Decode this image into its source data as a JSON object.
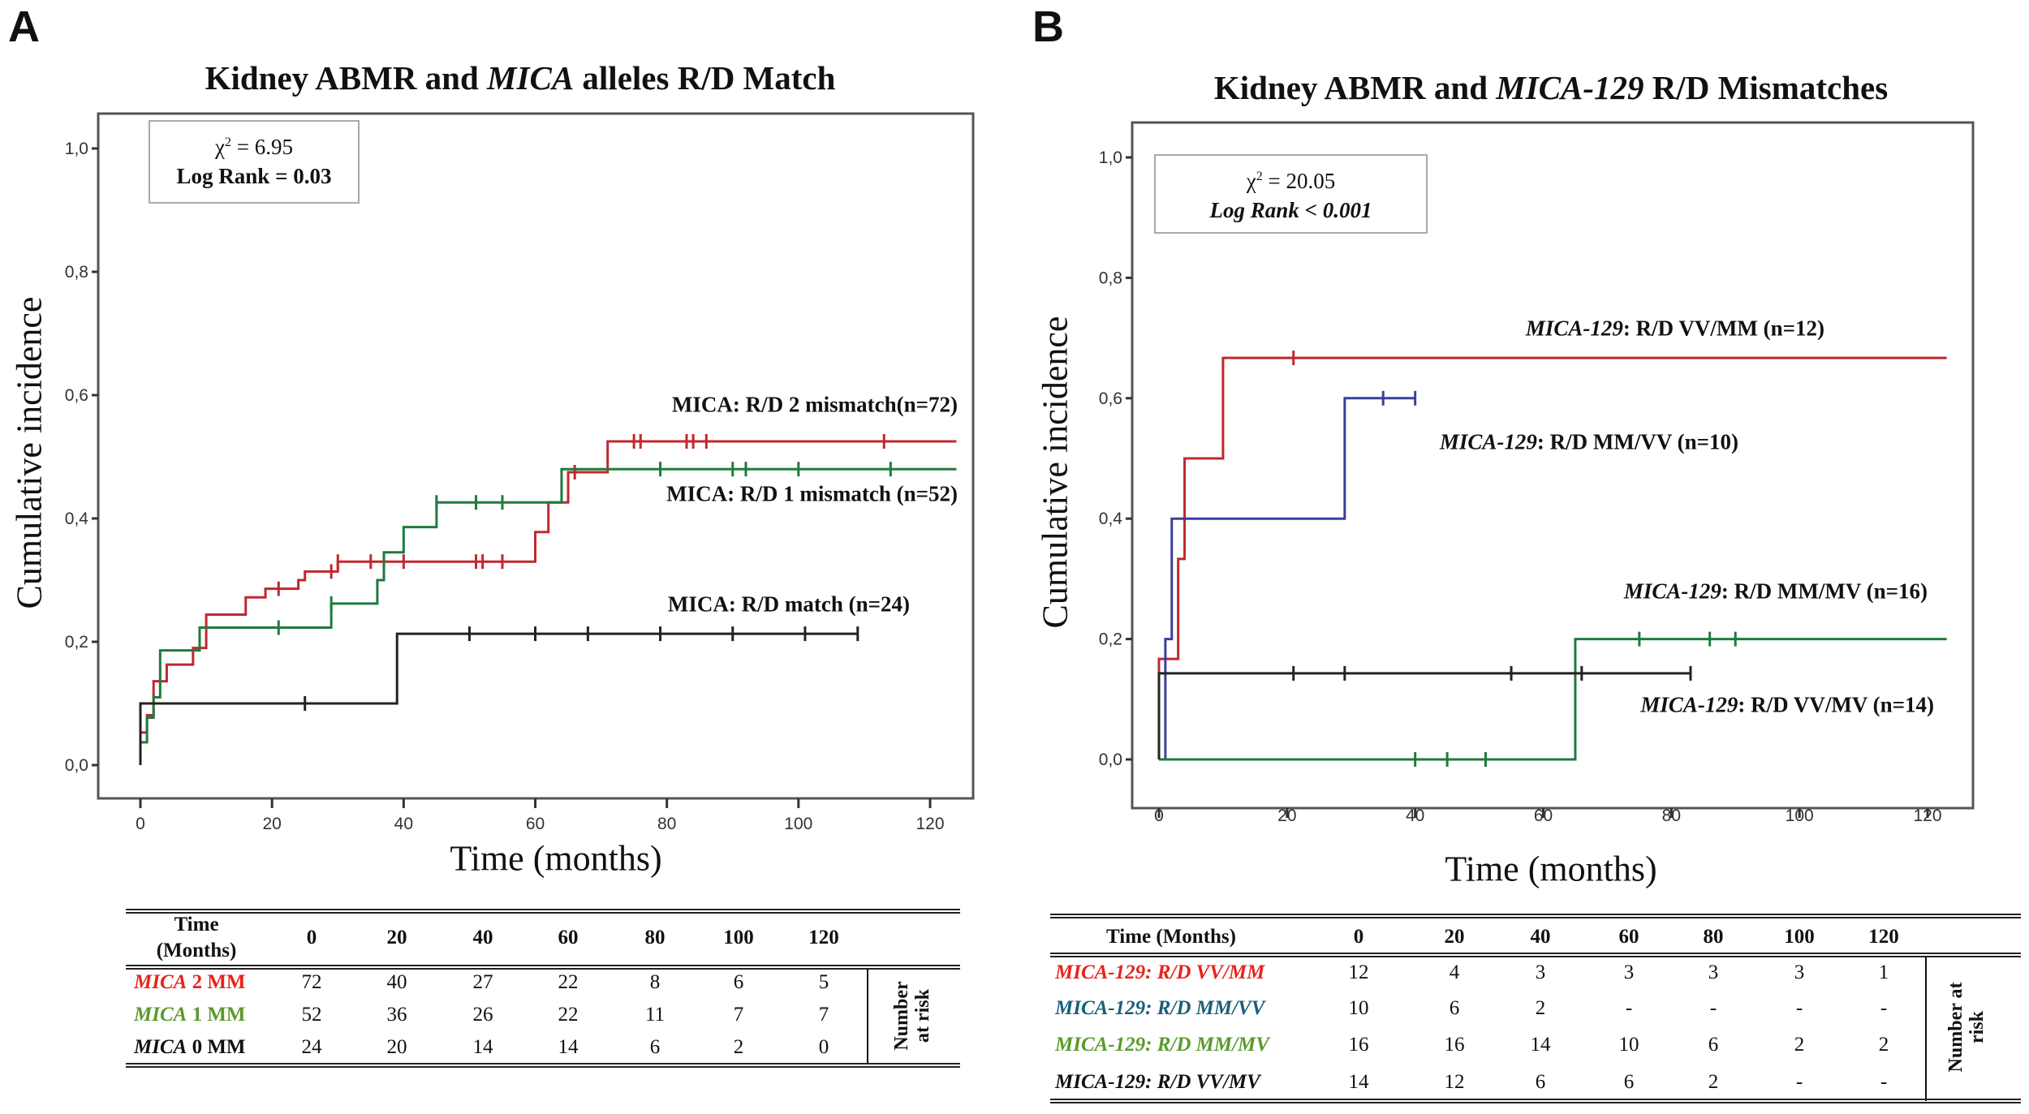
{
  "panels": {
    "A": {
      "letter": "A",
      "title": {
        "pre": "Kidney ABMR and ",
        "italic": "MICA",
        "post": " alleles R/D Match"
      },
      "stat": {
        "chi": "χ",
        "sup": "2",
        "value": " = 6.95",
        "logrank": "Log Rank = 0.03"
      },
      "annotations": [
        "MICA: R/D 2 mismatch(n=72)",
        "MICA: R/D 1 mismatch (n=52)",
        "MICA: R/D match (n=24)"
      ],
      "table": {
        "header_label": [
          "Time",
          "(Months)"
        ],
        "times": [
          "0",
          "20",
          "40",
          "60",
          "80",
          "100",
          "120"
        ],
        "side_label": [
          "Number",
          "at risk"
        ],
        "rows": [
          {
            "italic": "MICA",
            "rest": " 2 MM",
            "color": "#e8231c",
            "values": [
              "72",
              "40",
              "27",
              "22",
              "8",
              "6",
              "5"
            ]
          },
          {
            "italic": "MICA",
            "rest": " 1 MM",
            "color": "#5a9a2a",
            "values": [
              "52",
              "36",
              "26",
              "22",
              "11",
              "7",
              "7"
            ]
          },
          {
            "italic": "MICA",
            "rest": " 0 MM",
            "color": "#111111",
            "values": [
              "24",
              "20",
              "14",
              "14",
              "6",
              "2",
              "0"
            ]
          }
        ]
      }
    },
    "B": {
      "letter": "B",
      "title": {
        "pre": "Kidney ABMR and ",
        "italic": "MICA-129",
        "post": " R/D Mismatches"
      },
      "stat": {
        "chi": "χ",
        "sup": "2",
        "value": " = 20.05",
        "logrank": "Log Rank < 0.001"
      },
      "annotations": [
        {
          "italic": "MICA-129",
          "rest": ": R/D VV/MM (n=12)"
        },
        {
          "italic": "MICA-129",
          "rest": ": R/D MM/VV (n=10)"
        },
        {
          "italic": "MICA-129",
          "rest": ": R/D MM/MV (n=16)"
        },
        {
          "italic": "MICA-129",
          "rest": ": R/D VV/MV (n=14)"
        }
      ],
      "table": {
        "header_label": "Time (Months)",
        "times": [
          "0",
          "20",
          "40",
          "60",
          "80",
          "100",
          "120"
        ],
        "side_label": [
          "Number at",
          "risk"
        ],
        "rows": [
          {
            "label": "MICA-129: R/D VV/MM",
            "color": "#e8231c",
            "values": [
              "12",
              "4",
              "3",
              "3",
              "3",
              "3",
              "1"
            ]
          },
          {
            "label": "MICA-129: R/D MM/VV",
            "color": "#1a5e7a",
            "values": [
              "10",
              "6",
              "2",
              "-",
              "-",
              "-",
              "-"
            ]
          },
          {
            "label": "MICA-129: R/D MM/MV",
            "color": "#5a9a2a",
            "values": [
              "16",
              "16",
              "14",
              "10",
              "6",
              "2",
              "2"
            ]
          },
          {
            "label": "MICA-129: R/D VV/MV",
            "color": "#111111",
            "values": [
              "14",
              "12",
              "6",
              "6",
              "2",
              "-",
              "-"
            ]
          }
        ]
      }
    }
  },
  "chart_data": [
    {
      "type": "line",
      "subtype": "kaplan-meier-step",
      "title": "Kidney ABMR and MICA alleles R/D Match",
      "xlabel": "Time (months)",
      "ylabel": "Cumulative incidence",
      "xlim": [
        -7,
        125
      ],
      "ylim": [
        -0.05,
        1.04
      ],
      "x_ticks": [
        0,
        20,
        40,
        60,
        80,
        100,
        120
      ],
      "x_tick_labels": [
        "0",
        "20",
        "40",
        "60",
        "80",
        "100",
        "120"
      ],
      "y_ticks": [
        0,
        0.2,
        0.4,
        0.6,
        0.8,
        1.0
      ],
      "y_tick_labels": [
        "0,0",
        "0,2",
        "0,4",
        "0,6",
        "0,8",
        "1,0"
      ],
      "grid": false,
      "series": [
        {
          "name": "MICA: R/D 2 mismatch (n=72)",
          "color": "#c0282e",
          "end": 124,
          "steps": [
            [
              0,
              0
            ],
            [
              0,
              0.053
            ],
            [
              1,
              0.081
            ],
            [
              2,
              0.136
            ],
            [
              4,
              0.163
            ],
            [
              8,
              0.19
            ],
            [
              10,
              0.244
            ],
            [
              16,
              0.272
            ],
            [
              19,
              0.286
            ],
            [
              24,
              0.3
            ],
            [
              25,
              0.314
            ],
            [
              30,
              0.33
            ],
            [
              60,
              0.378
            ],
            [
              62,
              0.426
            ],
            [
              65,
              0.475
            ],
            [
              71,
              0.525
            ]
          ],
          "censored": [
            21,
            29,
            30,
            35,
            40,
            51,
            52,
            55,
            66,
            75,
            76,
            83,
            84,
            86,
            113
          ]
        },
        {
          "name": "MICA: R/D 1 mismatch (n=52)",
          "color": "#1f7a3e",
          "end": 124,
          "steps": [
            [
              0,
              0
            ],
            [
              0,
              0.037
            ],
            [
              1,
              0.077
            ],
            [
              2,
              0.11
            ],
            [
              3,
              0.186
            ],
            [
              9,
              0.223
            ],
            [
              29,
              0.262
            ],
            [
              36,
              0.3
            ],
            [
              37,
              0.345
            ],
            [
              40,
              0.386
            ],
            [
              45,
              0.426
            ],
            [
              64,
              0.48
            ]
          ],
          "censored": [
            21,
            29,
            45,
            51,
            55,
            79,
            90,
            92,
            100,
            114
          ]
        },
        {
          "name": "MICA: R/D match (n=24)",
          "color": "#222222",
          "end": 109,
          "steps": [
            [
              0,
              0
            ],
            [
              0,
              0.1
            ],
            [
              39,
              0.213
            ]
          ],
          "censored": [
            25,
            50,
            60,
            68,
            79,
            90,
            101,
            109
          ]
        }
      ]
    },
    {
      "type": "line",
      "subtype": "kaplan-meier-step",
      "title": "Kidney ABMR and MICA-129 R/D Mismatches",
      "xlabel": "Time (months)",
      "ylabel": "Cumulative incidence",
      "xlim": [
        -4,
        127
      ],
      "ylim": [
        -0.05,
        1.05
      ],
      "x_ticks": [
        0,
        20,
        40,
        60,
        80,
        100,
        120
      ],
      "x_tick_labels": [
        "0",
        "20",
        "40",
        "60",
        "80",
        "100",
        "120"
      ],
      "y_ticks": [
        0,
        0.2,
        0.4,
        0.6,
        0.8,
        1.0
      ],
      "y_tick_labels": [
        "0,0",
        "0,2",
        "0,4",
        "0,6",
        "0,8",
        "1,0"
      ],
      "grid": false,
      "series": [
        {
          "name": "MICA-129: R/D VV/MM (n=12)",
          "color": "#c0282e",
          "end": 123,
          "steps": [
            [
              0,
              0
            ],
            [
              0,
              0.167
            ],
            [
              3,
              0.333
            ],
            [
              4,
              0.5
            ],
            [
              10,
              0.667
            ]
          ],
          "censored": [
            21
          ]
        },
        {
          "name": "MICA-129: R/D MM/VV (n=10)",
          "color": "#3a3f9c",
          "end": 40,
          "steps": [
            [
              0,
              0
            ],
            [
              1,
              0.2
            ],
            [
              2,
              0.4
            ],
            [
              29,
              0.6
            ]
          ],
          "censored": [
            35,
            40
          ]
        },
        {
          "name": "MICA-129: R/D MM/MV (n=16)",
          "color": "#1f7a3e",
          "end": 123,
          "steps": [
            [
              0,
              0
            ],
            [
              65,
              0.2
            ]
          ],
          "censored": [
            40,
            45,
            51,
            75,
            86,
            90
          ]
        },
        {
          "name": "MICA-129: R/D VV/MV (n=14)",
          "color": "#222222",
          "end": 83,
          "steps": [
            [
              0,
              0
            ],
            [
              0,
              0.143
            ]
          ],
          "censored": [
            21,
            29,
            55,
            66,
            83
          ]
        }
      ]
    }
  ]
}
